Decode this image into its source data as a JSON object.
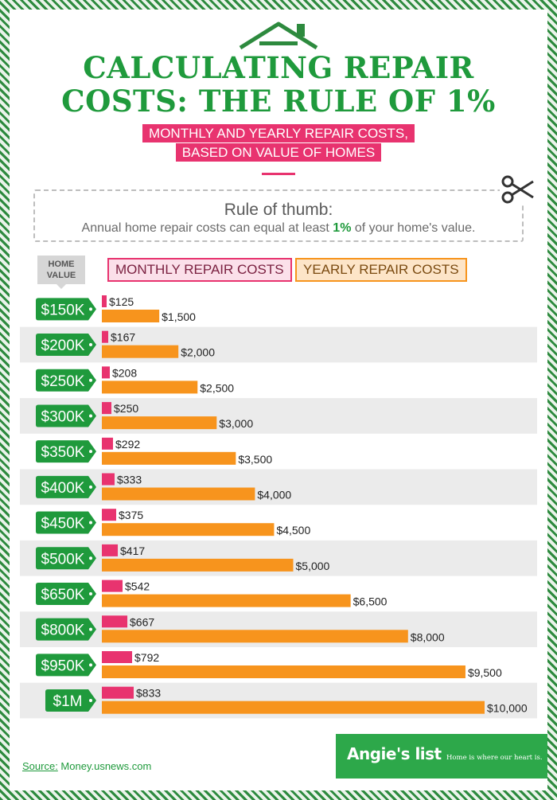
{
  "title_line1": "CALCULATING REPAIR",
  "title_line2": "COSTS: THE RULE OF 1%",
  "subtitle_line1": "MONTHLY AND YEARLY REPAIR COSTS,",
  "subtitle_line2": "BASED ON VALUE OF HOMES",
  "rule": {
    "title": "Rule of thumb:",
    "text_before": "Annual home repair costs can equal at least ",
    "pct": "1%",
    "text_after": " of your home's value."
  },
  "home_value_badge": [
    "HOME",
    "VALUE"
  ],
  "source_label": "Source:",
  "source_value": " Money.usnews.com",
  "logo": {
    "main": "Angie's list",
    "tagline": "Home is where our heart is."
  },
  "colors": {
    "green": "#1f9a3c",
    "monthly": "#e8336f",
    "yearly": "#f7941d",
    "row_alt": "#ebebeb"
  },
  "chart_data": {
    "type": "bar",
    "categories": [
      "$150K",
      "$200K",
      "$250K",
      "$300K",
      "$350K",
      "$400K",
      "$450K",
      "$500K",
      "$650K",
      "$800K",
      "$950K",
      "$1M"
    ],
    "series": [
      {
        "name": "MONTHLY REPAIR COSTS",
        "values": [
          125,
          167,
          208,
          250,
          292,
          333,
          375,
          417,
          542,
          667,
          792,
          833
        ],
        "labels": [
          "$125",
          "$167",
          "$208",
          "$250",
          "$292",
          "$333",
          "$375",
          "$417",
          "$542",
          "$667",
          "$792",
          "$833"
        ]
      },
      {
        "name": "YEARLY REPAIR COSTS",
        "values": [
          1500,
          2000,
          2500,
          3000,
          3500,
          4000,
          4500,
          5000,
          6500,
          8000,
          9500,
          10000
        ],
        "labels": [
          "$1,500",
          "$2,000",
          "$2,500",
          "$3,000",
          "$3,500",
          "$4,000",
          "$4,500",
          "$5,000",
          "$6,500",
          "$8,000",
          "$9,500",
          "$10,000"
        ]
      }
    ],
    "orientation": "horizontal",
    "legend": "top"
  }
}
